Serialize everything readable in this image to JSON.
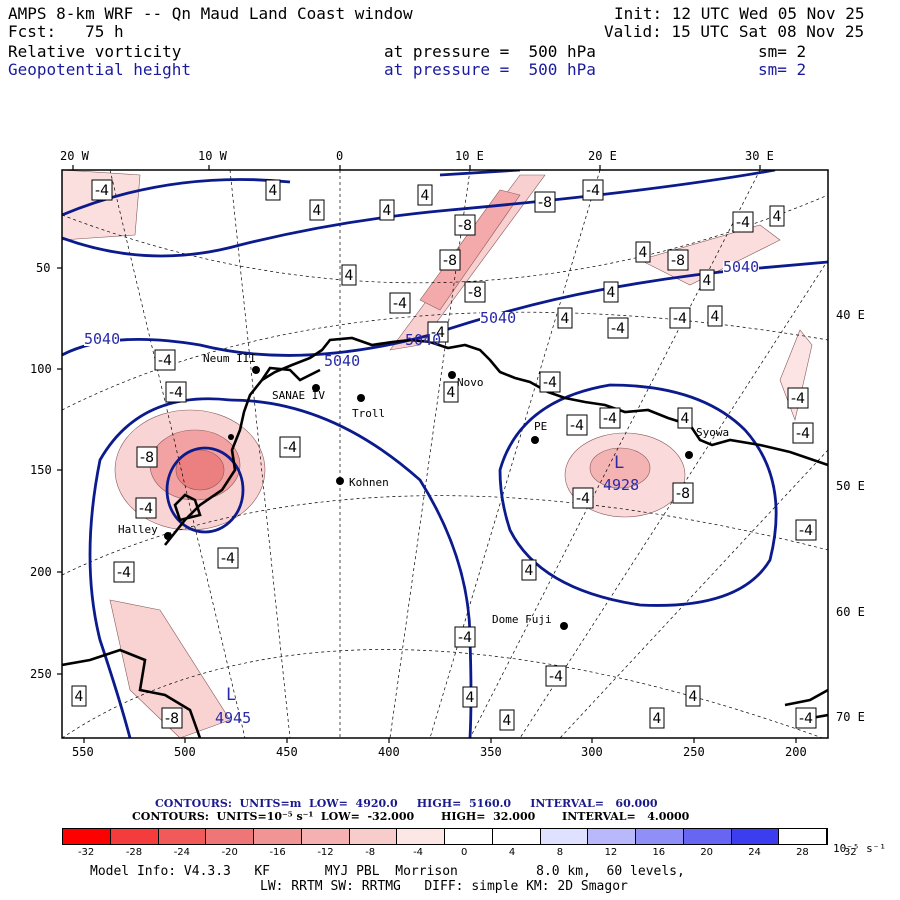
{
  "header": {
    "title": "AMPS 8-km WRF -- Qn Maud Land Coast window",
    "init": "Init: 12 UTC Wed 05 Nov 25",
    "fcst": "Fcst:   75 h",
    "valid": "Valid: 15 UTC Sat 08 Nov 25",
    "field1": {
      "name": "Relative vorticity",
      "pressure": "at pressure =  500 hPa",
      "sm": "sm= 2"
    },
    "field2": {
      "name": "Geopotential height",
      "pressure": "at pressure =  500 hPa",
      "sm": "sm= 2"
    }
  },
  "map": {
    "top_axis": [
      "20 W",
      "10 W",
      "0",
      "10 E",
      "20 E",
      "30 E"
    ],
    "left_axis": [
      "50",
      "100",
      "150",
      "200",
      "250"
    ],
    "bottom_axis": [
      "550",
      "500",
      "450",
      "400",
      "350",
      "300",
      "250",
      "200"
    ],
    "right_axis": [
      "40 E",
      "50 E",
      "60 E",
      "70 E"
    ],
    "stations": [
      "Neum III",
      "SANAE IV",
      "Troll",
      "Novo",
      "Kohnen",
      "Halley",
      "PE",
      "Syowa",
      "Dome Fuji"
    ],
    "height_labels": [
      "5040",
      "5040",
      "5040",
      "5040",
      "5040"
    ],
    "lows": [
      {
        "letter": "L",
        "value": "4928"
      },
      {
        "letter": "L",
        "value": "4945"
      }
    ],
    "colors": {
      "height_contour": "#0b1a8c",
      "vorticity_fill": "#f4b6b6",
      "coast": "#000000"
    }
  },
  "footer": {
    "contours1": "CONTOURS:  UNITS=m  LOW=  4920.0     HIGH=  5160.0     INTERVAL=   60.000",
    "contours2": "CONTOURS:  UNITS=10⁻⁵ s⁻¹  LOW=  -32.000       HIGH=  32.000       INTERVAL=   4.0000",
    "colorbar_labels": [
      "-32",
      "-28",
      "-24",
      "-20",
      "-16",
      "-12",
      "-8",
      "-4",
      "0",
      "4",
      "8",
      "12",
      "16",
      "20",
      "24",
      "28",
      "32"
    ],
    "colorbar_unit": "10⁻⁵ s⁻¹",
    "colorbar_colors": [
      "#ff0000",
      "#f53c3c",
      "#f25a5a",
      "#ef7676",
      "#f19494",
      "#f5b1b1",
      "#f9cccc",
      "#fde6e6",
      "#ffffff",
      "#ffffff",
      "#ffffff",
      "#e0e0ff",
      "#b8b8fb",
      "#8f8ff7",
      "#6666f3",
      "#3d3df0",
      "#1010ff"
    ],
    "model_info": "Model Info: V4.3.3   KF       MYJ PBL  Morrison          8.0 km,  60 levels,",
    "model_info2": "LW: RRTM SW: RRTMG   DIFF: simple KM: 2D Smagor"
  }
}
